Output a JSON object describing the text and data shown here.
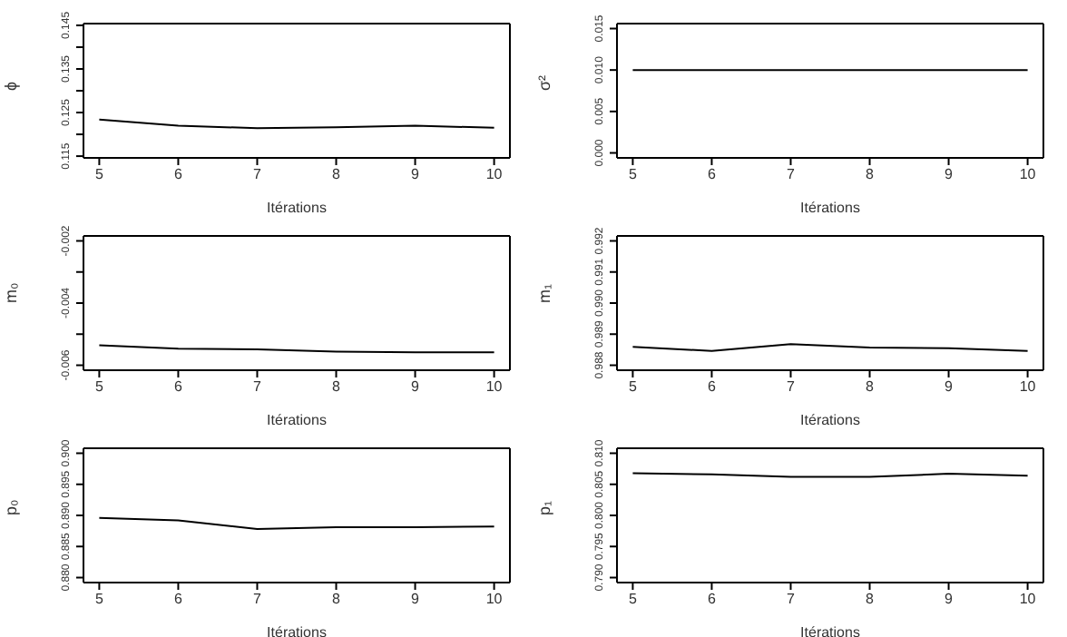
{
  "chart_data": [
    {
      "type": "line",
      "x": [
        5,
        6,
        7,
        8,
        9,
        10
      ],
      "values": [
        0.1234,
        0.122,
        0.1214,
        0.1216,
        0.122,
        0.1215
      ],
      "color": "#000000",
      "xlabel": "Itérations",
      "ylabel": "ϕ",
      "xlim": [
        4.8,
        10.2
      ],
      "xticks": [
        5,
        6,
        7,
        8,
        9,
        10
      ],
      "ylim": [
        0.1146,
        0.1454
      ],
      "yticks": [
        0.115,
        {
          "value": 0.12,
          "label": null
        },
        0.125,
        {
          "value": 0.13,
          "label": null
        },
        0.135,
        {
          "value": 0.14,
          "label": null
        },
        0.145
      ],
      "grid": false,
      "legend": false,
      "marker": "none",
      "line_style": "solid"
    },
    {
      "type": "line",
      "x": [
        5,
        6,
        7,
        8,
        9,
        10
      ],
      "values": [
        0.01,
        0.01,
        0.01,
        0.01,
        0.01,
        0.01
      ],
      "color": "#000000",
      "xlabel": "Itérations",
      "ylabel": "σ²",
      "xlim": [
        4.8,
        10.2
      ],
      "xticks": [
        5,
        6,
        7,
        8,
        9,
        10
      ],
      "ylim": [
        -0.0006,
        0.0156
      ],
      "yticks": [
        {
          "value": 0,
          "label": "0.000"
        },
        0.005,
        {
          "value": 0.01,
          "label": "0.010"
        },
        0.015
      ],
      "grid": false,
      "legend": false,
      "marker": "none",
      "line_style": "solid"
    },
    {
      "type": "line",
      "x": [
        5,
        6,
        7,
        8,
        9,
        10
      ],
      "values": [
        -0.00536,
        -0.00547,
        -0.00549,
        -0.00556,
        -0.00558,
        -0.00558
      ],
      "color": "#000000",
      "xlabel": "Itérations",
      "ylabel": "m₀",
      "xlim": [
        4.8,
        10.2
      ],
      "xticks": [
        5,
        6,
        7,
        8,
        9,
        10
      ],
      "ylim": [
        -0.00616,
        -0.00184
      ],
      "yticks": [
        -0.006,
        {
          "value": -0.005,
          "label": null
        },
        -0.004,
        {
          "value": -0.003,
          "label": null
        },
        -0.002
      ],
      "grid": false,
      "legend": false,
      "marker": "none",
      "line_style": "solid"
    },
    {
      "type": "line",
      "x": [
        5,
        6,
        7,
        8,
        9,
        10
      ],
      "values": [
        0.98859,
        0.98846,
        0.98868,
        0.98857,
        0.98855,
        0.98846
      ],
      "color": "#000000",
      "xlabel": "Itérations",
      "ylabel": "m₁",
      "xlim": [
        4.8,
        10.2
      ],
      "xticks": [
        5,
        6,
        7,
        8,
        9,
        10
      ],
      "ylim": [
        0.98784,
        0.99216
      ],
      "yticks": [
        0.988,
        0.989,
        {
          "value": 0.99,
          "label": "0.990"
        },
        0.991,
        0.992
      ],
      "grid": false,
      "legend": false,
      "marker": "none",
      "line_style": "solid"
    },
    {
      "type": "line",
      "x": [
        5,
        6,
        7,
        8,
        9,
        10
      ],
      "values": [
        0.8896,
        0.8892,
        0.8878,
        0.8881,
        0.8881,
        0.8882
      ],
      "color": "#000000",
      "xlabel": "Itérations",
      "ylabel": "p₀",
      "xlim": [
        4.8,
        10.2
      ],
      "xticks": [
        5,
        6,
        7,
        8,
        9,
        10
      ],
      "ylim": [
        0.8792,
        0.9008
      ],
      "yticks": [
        {
          "value": 0.88,
          "label": "0.880"
        },
        0.885,
        {
          "value": 0.89,
          "label": "0.890"
        },
        0.895,
        {
          "value": 0.9,
          "label": "0.900"
        }
      ],
      "grid": false,
      "legend": false,
      "marker": "none",
      "line_style": "solid"
    },
    {
      "type": "line",
      "x": [
        5,
        6,
        7,
        8,
        9,
        10
      ],
      "values": [
        0.8068,
        0.8066,
        0.8062,
        0.8062,
        0.8067,
        0.8064
      ],
      "color": "#000000",
      "xlabel": "Itérations",
      "ylabel": "p₁",
      "xlim": [
        4.8,
        10.2
      ],
      "xticks": [
        5,
        6,
        7,
        8,
        9,
        10
      ],
      "ylim": [
        0.7892,
        0.8108
      ],
      "yticks": [
        {
          "value": 0.79,
          "label": "0.790"
        },
        0.795,
        {
          "value": 0.8,
          "label": "0.800"
        },
        0.805,
        {
          "value": 0.81,
          "label": "0.810"
        }
      ],
      "grid": false,
      "legend": false,
      "marker": "none",
      "line_style": "solid"
    }
  ]
}
